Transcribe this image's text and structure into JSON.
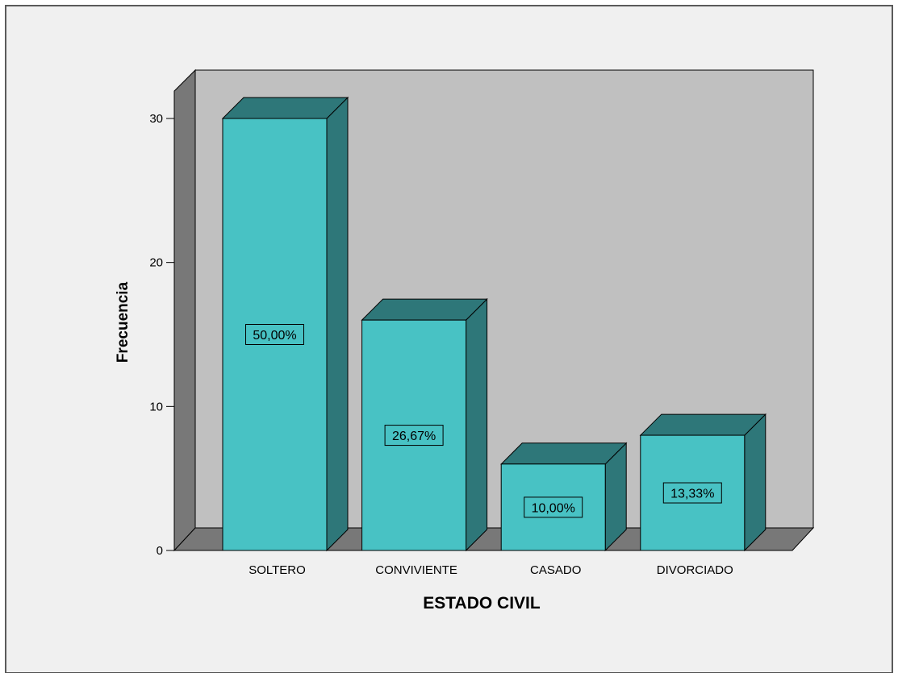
{
  "chart_data": {
    "type": "bar",
    "xlabel": "ESTADO CIVIL",
    "ylabel": "Frecuencia",
    "categories": [
      "SOLTERO",
      "CONVIVIENTE",
      "CASADO",
      "DIVORCIADO"
    ],
    "values": [
      30,
      16,
      6,
      8
    ],
    "data_labels": [
      "50,00%",
      "26,67%",
      "10,00%",
      "13,33%"
    ],
    "ylim": [
      0,
      30
    ],
    "yticks": [
      0,
      10,
      20,
      30
    ],
    "grid": false,
    "three_d": true
  },
  "colors": {
    "bar_front": "#48C2C4",
    "bar_top": "#2E7779",
    "bar_side": "#2E7779",
    "wall_back": "#C0C0C0",
    "wall_side": "#787878",
    "floor": "#787878",
    "outer_background": "#F0F0F0",
    "border": "#5A5A5A"
  }
}
